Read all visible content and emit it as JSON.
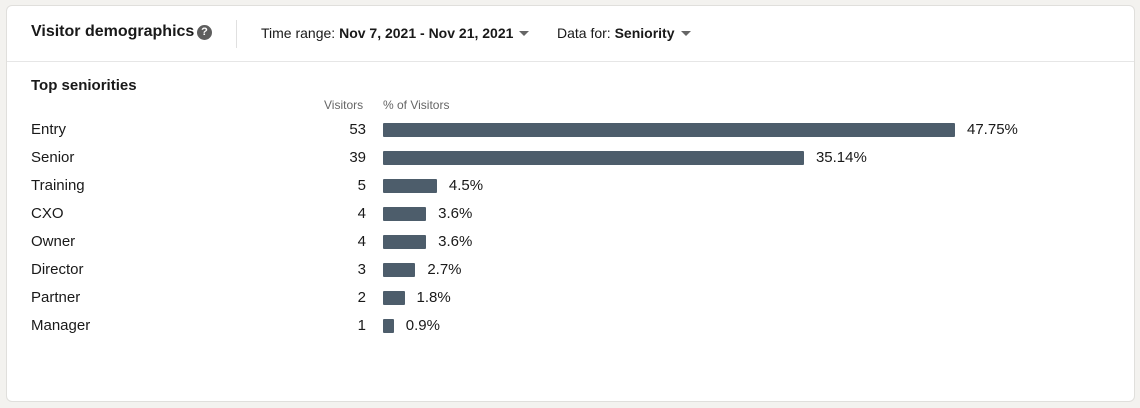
{
  "header": {
    "title": "Visitor demographics",
    "help_icon": "question-circle-icon",
    "time_range_label": "Time range:",
    "time_range_value": "Nov 7, 2021 - Nov 21, 2021",
    "data_for_label": "Data for:",
    "data_for_value": "Seniority"
  },
  "section": {
    "title": "Top seniorities",
    "col_visitors": "Visitors",
    "col_percent": "% of Visitors"
  },
  "colors": {
    "bar": "#4d5d6b"
  },
  "chart_data": {
    "type": "bar",
    "orientation": "horizontal",
    "categories": [
      "Entry",
      "Senior",
      "Training",
      "CXO",
      "Owner",
      "Director",
      "Partner",
      "Manager"
    ],
    "visitors": [
      53,
      39,
      5,
      4,
      4,
      3,
      2,
      1
    ],
    "percent": [
      47.75,
      35.14,
      4.5,
      3.6,
      3.6,
      2.7,
      1.8,
      0.9
    ],
    "percent_labels": [
      "47.75%",
      "35.14%",
      "4.5%",
      "3.6%",
      "3.6%",
      "2.7%",
      "1.8%",
      "0.9%"
    ]
  }
}
